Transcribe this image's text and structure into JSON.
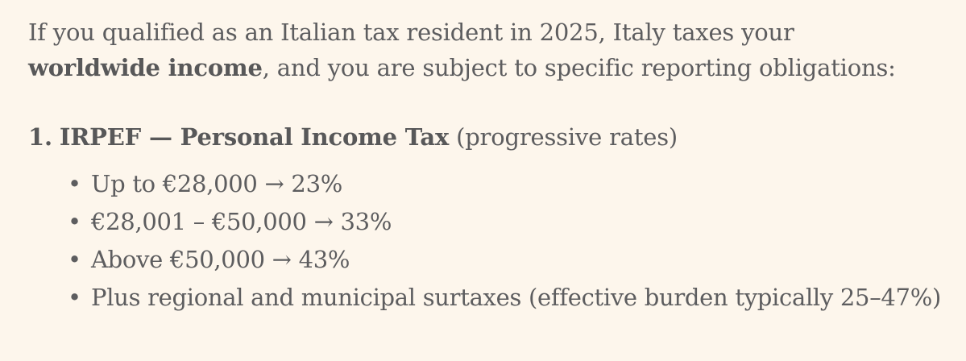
{
  "intro": {
    "text_before_bold_1": "If you qualified as an Italian tax resident in 2025, Italy taxes your ",
    "bold_1": "worldwide income",
    "text_after_bold_1": ", and you are subject to specific reporting obligations:"
  },
  "section": {
    "number": "1.",
    "title": "IRPEF — Personal Income Tax",
    "subtitle": "(progressive rates)"
  },
  "rates": [
    {
      "text": "Up to €28,000 → 23%"
    },
    {
      "text": "€28,001 – €50,000 → 33%"
    },
    {
      "text": "Above €50,000 → 43%"
    },
    {
      "text": "Plus regional and municipal surtaxes (effective burden typically 25–47%)"
    }
  ],
  "icons": {
    "bullet": "•"
  }
}
